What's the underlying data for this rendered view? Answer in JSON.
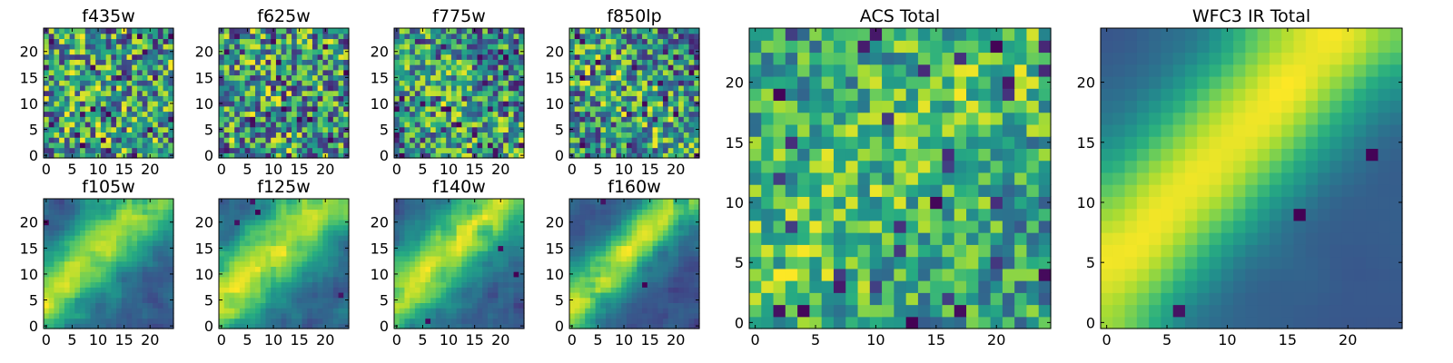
{
  "figure": {
    "description_free": true,
    "colormap": "viridis",
    "colormap_stops": [
      "#440154",
      "#3b528b",
      "#21918c",
      "#5ec962",
      "#fde725"
    ]
  },
  "chart_data": [
    {
      "type": "heatmap",
      "title": "f435w",
      "grid": [
        25,
        25
      ],
      "xticks": [
        "0",
        "5",
        "10",
        "15",
        "20"
      ],
      "yticks": [
        "0",
        "5",
        "10",
        "15",
        "20"
      ],
      "xlim": [
        0,
        25
      ],
      "ylim": [
        0,
        25
      ],
      "pattern": "noise",
      "seed": 11,
      "low_color_probability": 0.08
    },
    {
      "type": "heatmap",
      "title": "f625w",
      "grid": [
        25,
        25
      ],
      "xticks": [
        "0",
        "5",
        "10",
        "15",
        "20"
      ],
      "yticks": [
        "0",
        "5",
        "10",
        "15",
        "20"
      ],
      "xlim": [
        0,
        25
      ],
      "ylim": [
        0,
        25
      ],
      "pattern": "noise",
      "seed": 23,
      "low_color_probability": 0.1
    },
    {
      "type": "heatmap",
      "title": "f775w",
      "grid": [
        25,
        25
      ],
      "xticks": [
        "0",
        "5",
        "10",
        "15",
        "20"
      ],
      "yticks": [
        "0",
        "5",
        "10",
        "15",
        "20"
      ],
      "xlim": [
        0,
        25
      ],
      "ylim": [
        0,
        25
      ],
      "pattern": "noise_diag",
      "seed": 37,
      "low_color_probability": 0.07
    },
    {
      "type": "heatmap",
      "title": "f850lp",
      "grid": [
        25,
        25
      ],
      "xticks": [
        "0",
        "5",
        "10",
        "15",
        "20"
      ],
      "yticks": [
        "0",
        "5",
        "10",
        "15",
        "20"
      ],
      "xlim": [
        0,
        25
      ],
      "ylim": [
        0,
        25
      ],
      "pattern": "noise_diag",
      "seed": 41,
      "low_color_probability": 0.08
    },
    {
      "type": "heatmap",
      "title": "f105w",
      "grid": [
        25,
        25
      ],
      "xticks": [
        "0",
        "5",
        "10",
        "15",
        "20"
      ],
      "yticks": [
        "0",
        "5",
        "10",
        "15",
        "20"
      ],
      "xlim": [
        0,
        25
      ],
      "ylim": [
        0,
        25
      ],
      "pattern": "diag",
      "seed": 53,
      "low_color_probability": 0.04
    },
    {
      "type": "heatmap",
      "title": "f125w",
      "grid": [
        25,
        25
      ],
      "xticks": [
        "0",
        "5",
        "10",
        "15",
        "20"
      ],
      "yticks": [
        "0",
        "5",
        "10",
        "15",
        "20"
      ],
      "xlim": [
        0,
        25
      ],
      "ylim": [
        0,
        25
      ],
      "pattern": "diag",
      "seed": 67,
      "low_color_probability": 0.03
    },
    {
      "type": "heatmap",
      "title": "f140w",
      "grid": [
        25,
        25
      ],
      "xticks": [
        "0",
        "5",
        "10",
        "15",
        "20"
      ],
      "yticks": [
        "0",
        "5",
        "10",
        "15",
        "20"
      ],
      "xlim": [
        0,
        25
      ],
      "ylim": [
        0,
        25
      ],
      "pattern": "diag",
      "seed": 79,
      "low_color_probability": 0.03
    },
    {
      "type": "heatmap",
      "title": "f160w",
      "grid": [
        25,
        25
      ],
      "xticks": [
        "0",
        "5",
        "10",
        "15",
        "20"
      ],
      "yticks": [
        "0",
        "5",
        "10",
        "15",
        "20"
      ],
      "xlim": [
        0,
        25
      ],
      "ylim": [
        0,
        25
      ],
      "pattern": "diag_strong",
      "seed": 89,
      "low_color_probability": 0.05
    },
    {
      "type": "heatmap",
      "title": "ACS Total",
      "grid": [
        25,
        25
      ],
      "xticks": [
        "0",
        "5",
        "10",
        "15",
        "20"
      ],
      "yticks": [
        "0",
        "5",
        "10",
        "15",
        "20"
      ],
      "xlim": [
        0,
        25
      ],
      "ylim": [
        0,
        25
      ],
      "pattern": "blocky",
      "seed": 97,
      "low_color_probability": 0.05
    },
    {
      "type": "heatmap",
      "title": "WFC3 IR Total",
      "grid": [
        25,
        25
      ],
      "xticks": [
        "0",
        "5",
        "10",
        "15",
        "20"
      ],
      "yticks": [
        "0",
        "5",
        "10",
        "15",
        "20"
      ],
      "xlim": [
        0,
        25
      ],
      "ylim": [
        0,
        25
      ],
      "pattern": "smooth_diag",
      "seed": 101,
      "low_color_probability": 0.0
    }
  ]
}
